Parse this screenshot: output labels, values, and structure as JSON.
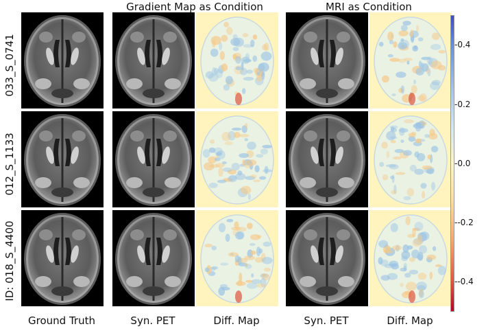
{
  "titles": {
    "gradient_group": "Gradient Map as Condition",
    "mri_group": "MRI as Condition"
  },
  "row_labels": [
    "033_S_0741",
    "012_S_1133",
    "ID: 018_S_4400"
  ],
  "column_labels": [
    "Ground Truth",
    "Syn. PET",
    "Diff. Map",
    "Syn. PET",
    "Diff. Map"
  ],
  "colorbar": {
    "ticks": [
      "0.4",
      "0.2",
      "0.0",
      "-0.2",
      "-0.4"
    ],
    "values": [
      0.4,
      0.2,
      0.0,
      -0.2,
      -0.4
    ],
    "range": [
      -0.5,
      0.5
    ],
    "colors": {
      "top": "#3b4cc0",
      "middle": "#fff6c4",
      "bottom": "#b40426"
    }
  },
  "colors": {
    "brain_tissue": "#5c5c5c",
    "brain_bright": "#d0d0d0",
    "diff_background": "#fff4bd",
    "diff_blue": "#9cc4e4",
    "diff_red": "#e0563c"
  }
}
